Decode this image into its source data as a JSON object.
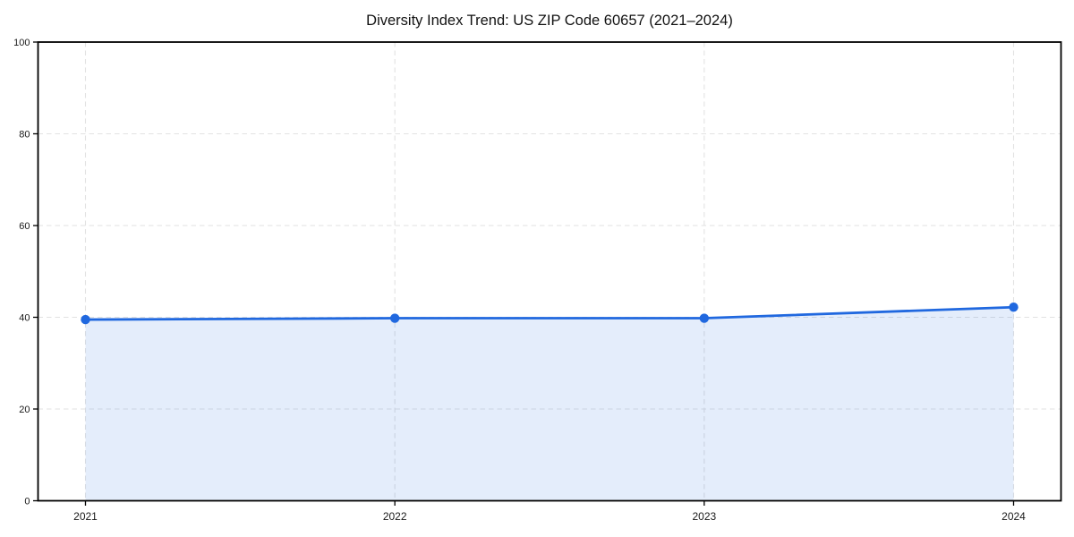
{
  "chart_data": {
    "type": "line",
    "title": "Diversity Index Trend: US ZIP Code 60657 (2021–2024)",
    "categories": [
      "2021",
      "2022",
      "2023",
      "2024"
    ],
    "series": [
      {
        "name": "Diversity Index",
        "values": [
          39.5,
          39.8,
          39.8,
          42.2
        ]
      }
    ],
    "xlabel": "",
    "ylabel": "",
    "ylim": [
      0,
      100
    ],
    "yticks": [
      0,
      20,
      40,
      60,
      80,
      100
    ],
    "grid": true,
    "grid_style": "dashed",
    "legend_position": "none",
    "line_color": "#2068df",
    "marker_color": "#2068df",
    "fill_color": "#2068df",
    "fill_opacity": 0.12,
    "grid_color": "#e2e2e2",
    "axis_color": "#000000",
    "tick_label_color": "#1a1a1a",
    "background_color": "#ffffff"
  }
}
